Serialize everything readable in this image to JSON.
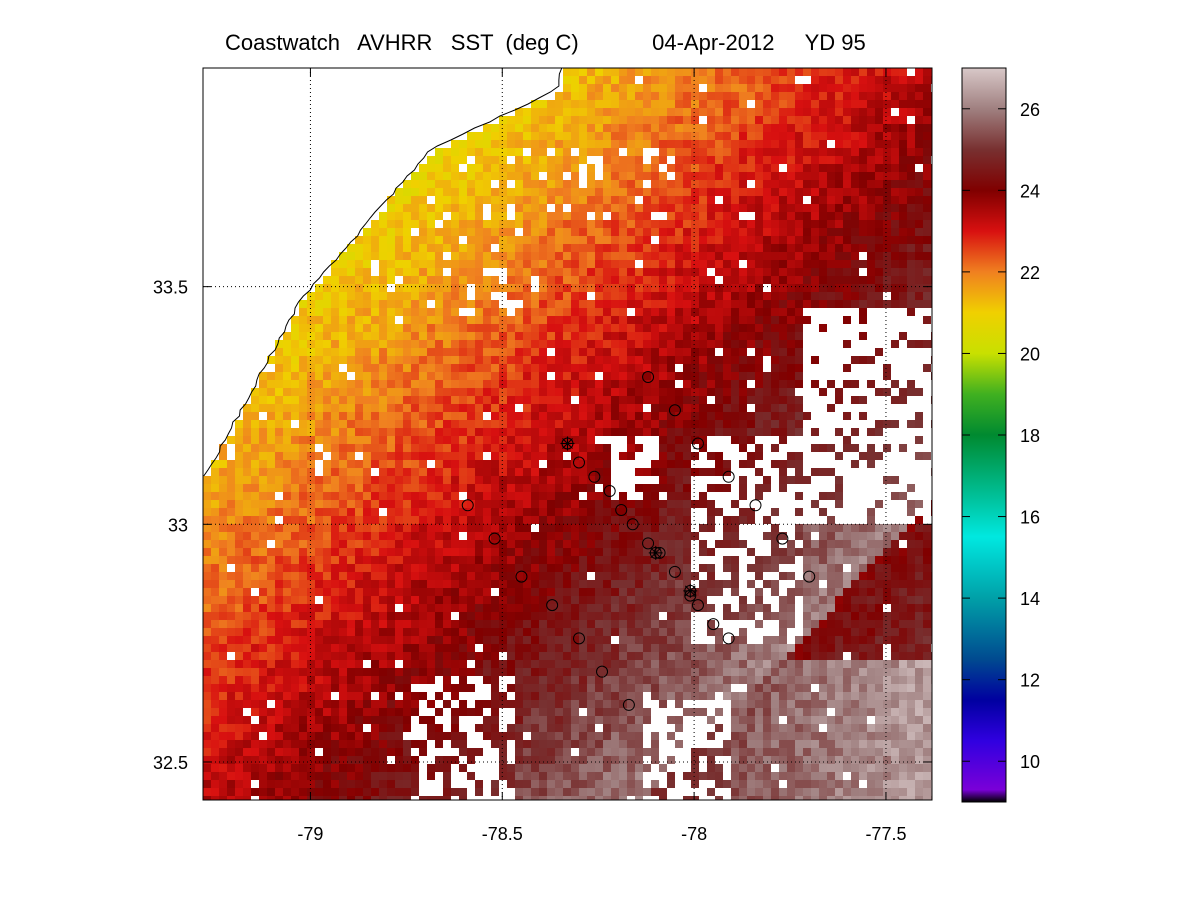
{
  "title": {
    "product": "Coastwatch   AVHRR   SST  (deg C)",
    "date": "04-Apr-2012",
    "yearday": "YD 95"
  },
  "map": {
    "lon_range": [
      -79.28,
      -77.38
    ],
    "lat_range": [
      32.42,
      33.96
    ],
    "x_ticks": [
      -79,
      -78.5,
      -78,
      -77.5
    ],
    "y_ticks": [
      32.5,
      33,
      33.5
    ],
    "x_tick_labels": [
      "-79",
      "-78.5",
      "-78",
      "-77.5"
    ],
    "y_tick_labels": [
      "32.5",
      "33",
      "33.5"
    ],
    "grid": "dotted",
    "colors": {
      "no_data": "#ffffff",
      "coastline": "#000000",
      "station_marker": "#000000"
    }
  },
  "colorbar": {
    "range": [
      9,
      27
    ],
    "ticks": [
      10,
      12,
      14,
      16,
      18,
      20,
      22,
      24,
      26
    ],
    "tick_labels": [
      "10",
      "12",
      "14",
      "16",
      "18",
      "20",
      "22",
      "24",
      "26"
    ],
    "stops": [
      {
        "value": 9,
        "color": "#000000"
      },
      {
        "value": 9.3,
        "color": "#7a00d8"
      },
      {
        "value": 10.5,
        "color": "#3000e0"
      },
      {
        "value": 11.5,
        "color": "#0000a0"
      },
      {
        "value": 12.5,
        "color": "#004a90"
      },
      {
        "value": 14,
        "color": "#00a0a8"
      },
      {
        "value": 15.5,
        "color": "#00e8e0"
      },
      {
        "value": 16.5,
        "color": "#00c098"
      },
      {
        "value": 18,
        "color": "#008a30"
      },
      {
        "value": 19,
        "color": "#40b020"
      },
      {
        "value": 20,
        "color": "#c8e000"
      },
      {
        "value": 21,
        "color": "#f0d000"
      },
      {
        "value": 22,
        "color": "#f08020"
      },
      {
        "value": 23,
        "color": "#d81010"
      },
      {
        "value": 24,
        "color": "#800000"
      },
      {
        "value": 25,
        "color": "#783030"
      },
      {
        "value": 26,
        "color": "#a08080"
      },
      {
        "value": 27,
        "color": "#d8c8c8"
      }
    ]
  },
  "chart_data": {
    "type": "heatmap",
    "x_values": [
      -79,
      -78.5,
      -78,
      -77.5
    ],
    "y_values": [
      32.5,
      33,
      33.5
    ],
    "value_range": [
      9,
      27
    ],
    "stations_circle": [
      [
        -78.12,
        33.31
      ],
      [
        -78.05,
        33.24
      ],
      [
        -77.99,
        33.17
      ],
      [
        -77.91,
        33.1
      ],
      [
        -78.3,
        33.13
      ],
      [
        -78.26,
        33.1
      ],
      [
        -78.22,
        33.07
      ],
      [
        -78.19,
        33.03
      ],
      [
        -78.16,
        33.0
      ],
      [
        -78.12,
        32.96
      ],
      [
        -78.09,
        32.94
      ],
      [
        -78.05,
        32.9
      ],
      [
        -78.01,
        32.85
      ],
      [
        -77.99,
        32.83
      ],
      [
        -77.95,
        32.79
      ],
      [
        -77.91,
        32.76
      ],
      [
        -78.59,
        33.04
      ],
      [
        -78.52,
        32.97
      ],
      [
        -78.45,
        32.89
      ],
      [
        -78.37,
        32.83
      ],
      [
        -78.3,
        32.76
      ],
      [
        -78.24,
        32.69
      ],
      [
        -78.17,
        32.62
      ],
      [
        -77.84,
        33.04
      ],
      [
        -77.77,
        32.97
      ],
      [
        -77.7,
        32.89
      ]
    ],
    "stations_star": [
      [
        -78.33,
        33.17
      ],
      [
        -78.1,
        32.94
      ],
      [
        -78.01,
        32.86
      ]
    ]
  }
}
